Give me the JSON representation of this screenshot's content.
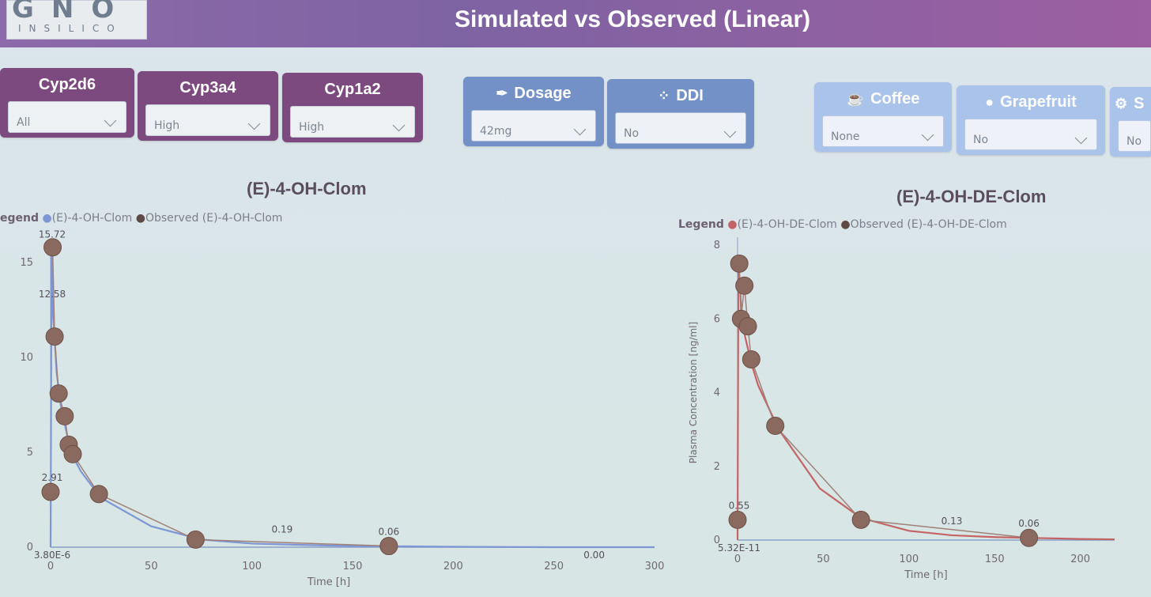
{
  "header": {
    "logo_main": "GNO",
    "logo_sub": "INSILICO",
    "title": "Simulated vs Observed (Linear)"
  },
  "filters": [
    {
      "label": "Cyp2d6",
      "value": "All"
    },
    {
      "label": "Cyp3a4",
      "value": "High"
    },
    {
      "label": "Cyp1a2",
      "value": "High"
    },
    {
      "label": "Dosage",
      "value": "42mg",
      "icon": "syringe-icon"
    },
    {
      "label": "DDI",
      "value": "No",
      "icon": "pills-icon"
    },
    {
      "label": "Coffee",
      "value": "None",
      "icon": "coffee-cup-icon"
    },
    {
      "label": "Grapefruit",
      "value": "No",
      "icon": "grapefruit-icon"
    },
    {
      "label": "S",
      "value": "No",
      "icon": "gear-icon"
    }
  ],
  "colors": {
    "header": "#8d6aa9",
    "filter_purple": "#7c4a7e",
    "filter_blue": "#7491c7",
    "filter_pale": "#aac3ea",
    "observed": "#8a6a5e",
    "sim_blue": "#7d96d4",
    "sim_red": "#c46464"
  },
  "chart_data": [
    {
      "type": "line",
      "title": "(E)-4-OH-Clom",
      "legend_label": "egend",
      "series": [
        {
          "name": "(E)-4-OH-Clom",
          "kind": "line",
          "x": [
            0,
            0.5,
            1,
            2,
            3,
            5,
            8,
            10,
            12,
            15,
            25,
            50,
            75,
            100,
            125,
            150,
            170,
            200,
            250,
            300
          ],
          "y": [
            0,
            15.72,
            12.58,
            11.0,
            9.2,
            7.5,
            6.0,
            5.2,
            4.6,
            4.0,
            2.6,
            1.1,
            0.4,
            0.19,
            0.12,
            0.06,
            0.05,
            0.02,
            0.0,
            0.0
          ]
        },
        {
          "name": "Observed (E)-4-OH-Clom",
          "kind": "scatter",
          "x": [
            0,
            1,
            2,
            4,
            7,
            9,
            11,
            24,
            72,
            168
          ],
          "y": [
            2.91,
            15.8,
            11.1,
            8.1,
            6.9,
            5.4,
            4.9,
            2.8,
            0.4,
            0.06
          ]
        }
      ],
      "data_labels": [
        {
          "x": 0,
          "y": 15.72,
          "text": "15.72"
        },
        {
          "x": 0,
          "y": 12.58,
          "text": "12.58"
        },
        {
          "x": 0,
          "y": 2.91,
          "text": "2.91"
        },
        {
          "x": 0,
          "y": 0,
          "text": "3.80E-6"
        },
        {
          "x": 115,
          "y": 0.19,
          "text": "0.19"
        },
        {
          "x": 168,
          "y": 0.06,
          "text": "0.06"
        },
        {
          "x": 270,
          "y": 0.0,
          "text": "0.00"
        }
      ],
      "xlabel": "Time [h]",
      "ylabel": "",
      "xlim": [
        0,
        300
      ],
      "ylim": [
        0,
        15
      ],
      "xticks": [
        0,
        50,
        100,
        150,
        200,
        250,
        300
      ],
      "yticks": [
        0,
        5,
        10,
        15
      ],
      "grid": false,
      "legend_position": "top-left"
    },
    {
      "type": "line",
      "title": "(E)-4-OH-DE-Clom",
      "legend_label": "Legend",
      "series": [
        {
          "name": "(E)-4-OH-DE-Clom",
          "kind": "line",
          "x": [
            0,
            0.5,
            1,
            2,
            4,
            8,
            12,
            24,
            48,
            72,
            100,
            125,
            150,
            170,
            200,
            220
          ],
          "y": [
            0,
            7.6,
            7.2,
            6.4,
            5.6,
            4.8,
            4.2,
            3.0,
            1.4,
            0.6,
            0.25,
            0.13,
            0.08,
            0.06,
            0.03,
            0.02
          ]
        },
        {
          "name": "Observed (E)-4-OH-DE-Clom",
          "kind": "scatter",
          "x": [
            0,
            1,
            2,
            4,
            6,
            8,
            22,
            72,
            170
          ],
          "y": [
            0.55,
            7.5,
            6.0,
            6.9,
            5.8,
            4.9,
            3.1,
            0.55,
            0.06
          ]
        }
      ],
      "data_labels": [
        {
          "x": 0,
          "y": 0.55,
          "text": "0.55"
        },
        {
          "x": 0,
          "y": 0,
          "text": "5.32E-11"
        },
        {
          "x": 125,
          "y": 0.13,
          "text": "0.13"
        },
        {
          "x": 170,
          "y": 0.06,
          "text": "0.06"
        }
      ],
      "xlabel": "Time [h]",
      "ylabel": "Plasma Concentration [ng/ml]",
      "xlim": [
        0,
        220
      ],
      "ylim": [
        0,
        8
      ],
      "xticks": [
        0,
        50,
        100,
        150,
        200
      ],
      "yticks": [
        0,
        2,
        4,
        6,
        8
      ],
      "grid": false,
      "legend_position": "top-left"
    }
  ]
}
